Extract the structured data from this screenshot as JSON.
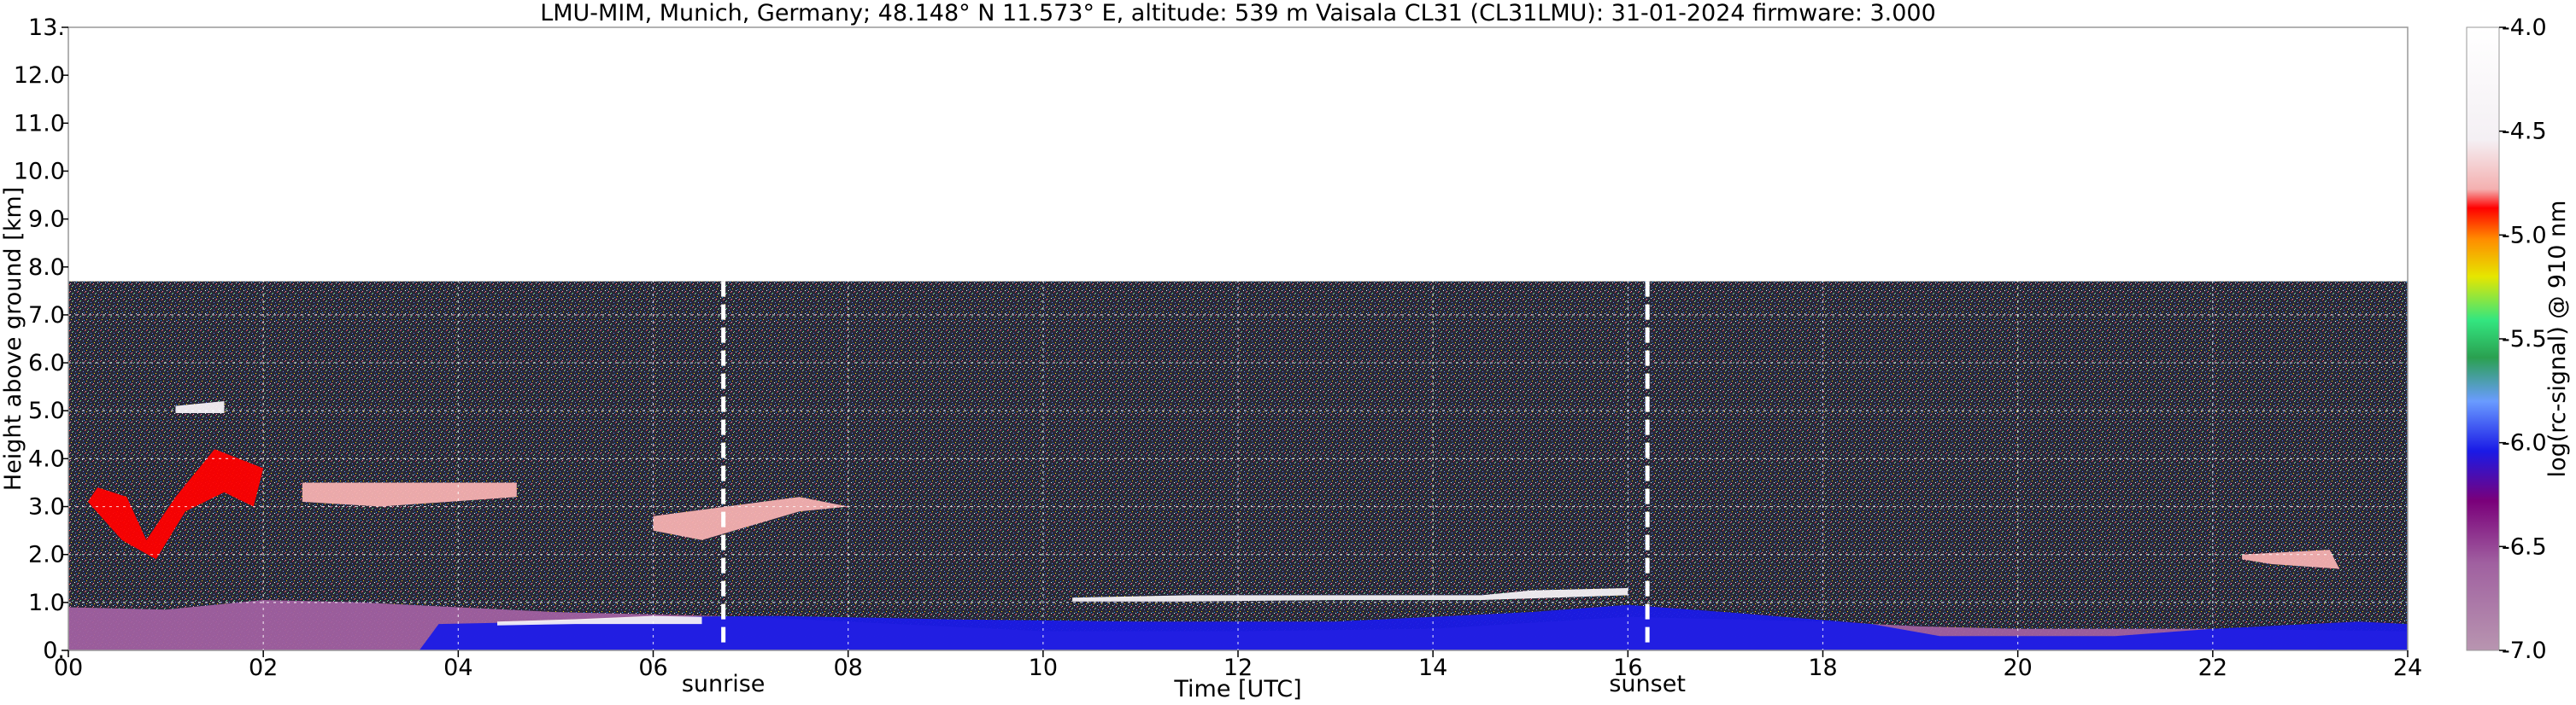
{
  "chart_data": {
    "type": "heatmap",
    "title": "LMU-MIM, Munich, Germany; 48.148° N 11.573° E, altitude: 539 m    Vaisala CL31 (CL31LMU): 31-01-2024    firmware: 3.000",
    "xlabel": "Time [UTC]",
    "ylabel": "Height above ground [km]",
    "xlim": [
      0,
      24
    ],
    "ylim": [
      0,
      13
    ],
    "x_ticks": [
      "00",
      "02",
      "04",
      "06",
      "08",
      "10",
      "12",
      "14",
      "16",
      "18",
      "20",
      "22",
      "24"
    ],
    "y_ticks": [
      "0.",
      "1.0",
      "2.0",
      "3.0",
      "4.0",
      "5.0",
      "6.0",
      "7.0",
      "8.0",
      "9.0",
      "10.0",
      "11.0",
      "12.0",
      "13."
    ],
    "grid": true,
    "measurement_top_km": 7.7,
    "annotations": [
      {
        "label": "sunrise",
        "x": 6.72
      },
      {
        "label": "sunset",
        "x": 16.2
      }
    ],
    "colorbar": {
      "label": "log(rc-signal) @ 910 nm",
      "range": [
        -7.0,
        -4.0
      ],
      "ticks": [
        "-4.0",
        "-4.5",
        "-5.0",
        "-5.5",
        "-6.0",
        "-6.5",
        "-7.0"
      ]
    },
    "layers": [
      {
        "name": "aerosol",
        "level": -6.6,
        "points": [
          [
            0,
            0
          ],
          [
            0,
            0.9
          ],
          [
            1,
            0.85
          ],
          [
            2,
            1.05
          ],
          [
            3,
            1.0
          ],
          [
            4,
            0.9
          ],
          [
            5,
            0.8
          ],
          [
            6,
            0.75
          ],
          [
            7,
            0.7
          ],
          [
            8,
            0.6
          ],
          [
            9,
            0.5
          ],
          [
            10,
            0.4
          ],
          [
            12,
            0.4
          ],
          [
            14,
            0.45
          ],
          [
            16,
            0.7
          ],
          [
            17,
            0.65
          ],
          [
            18,
            0.6
          ],
          [
            19,
            0.5
          ],
          [
            20,
            0.45
          ],
          [
            22,
            0.45
          ],
          [
            24,
            0.4
          ],
          [
            24,
            0
          ]
        ]
      },
      {
        "name": "boundary-layer",
        "level": -6.0,
        "points": [
          [
            3.6,
            0
          ],
          [
            3.8,
            0.55
          ],
          [
            5,
            0.6
          ],
          [
            6,
            0.7
          ],
          [
            7.3,
            0.72
          ],
          [
            9,
            0.65
          ],
          [
            11,
            0.6
          ],
          [
            13,
            0.6
          ],
          [
            15,
            0.8
          ],
          [
            16,
            0.95
          ],
          [
            17,
            0.8
          ],
          [
            18.5,
            0.55
          ],
          [
            19.2,
            0.3
          ],
          [
            21,
            0.3
          ],
          [
            22,
            0.45
          ],
          [
            23.5,
            0.6
          ],
          [
            24,
            0.55
          ],
          [
            24,
            0
          ]
        ]
      },
      {
        "name": "cloud-low-cap",
        "level": -4.3,
        "points": [
          [
            10.3,
            1.1
          ],
          [
            11.5,
            1.15
          ],
          [
            13,
            1.15
          ],
          [
            14.5,
            1.15
          ],
          [
            15,
            1.25
          ],
          [
            16,
            1.3
          ],
          [
            16,
            1.15
          ],
          [
            14.5,
            1.05
          ],
          [
            13,
            1.05
          ],
          [
            11.5,
            1.02
          ],
          [
            10.3,
            1.02
          ]
        ]
      },
      {
        "name": "cloud-stratus-morning",
        "level": -4.4,
        "points": [
          [
            4.4,
            0.6
          ],
          [
            5.2,
            0.65
          ],
          [
            6.0,
            0.72
          ],
          [
            6.5,
            0.7
          ],
          [
            6.5,
            0.55
          ],
          [
            5.2,
            0.55
          ],
          [
            4.4,
            0.52
          ]
        ]
      },
      {
        "name": "cloud-altocumulus-night",
        "level": -4.8,
        "points": [
          [
            0.3,
            3.4
          ],
          [
            0.6,
            3.2
          ],
          [
            0.8,
            2.3
          ],
          [
            1.1,
            3.2
          ],
          [
            1.5,
            4.2
          ],
          [
            2.0,
            3.8
          ],
          [
            1.9,
            3.0
          ],
          [
            1.6,
            3.3
          ],
          [
            1.2,
            2.9
          ],
          [
            0.9,
            1.9
          ],
          [
            0.55,
            2.3
          ],
          [
            0.2,
            3.1
          ]
        ]
      },
      {
        "name": "cloud-upper-night",
        "level": -4.5,
        "points": [
          [
            1.1,
            5.1
          ],
          [
            1.6,
            5.2
          ],
          [
            1.6,
            4.95
          ],
          [
            1.1,
            4.95
          ]
        ]
      },
      {
        "name": "cloud-band-0300",
        "level": -4.6,
        "points": [
          [
            2.4,
            3.5
          ],
          [
            4.6,
            3.5
          ],
          [
            4.6,
            3.2
          ],
          [
            3.2,
            3.0
          ],
          [
            2.4,
            3.1
          ]
        ]
      },
      {
        "name": "cloud-sunrise",
        "level": -4.6,
        "points": [
          [
            6.0,
            2.8
          ],
          [
            7.5,
            3.2
          ],
          [
            8.0,
            3.0
          ],
          [
            7.5,
            2.9
          ],
          [
            6.5,
            2.3
          ],
          [
            6.0,
            2.5
          ]
        ]
      },
      {
        "name": "cloud-evening",
        "level": -4.6,
        "points": [
          [
            22.3,
            2.0
          ],
          [
            23.2,
            2.1
          ],
          [
            23.3,
            1.7
          ],
          [
            22.6,
            1.8
          ],
          [
            22.3,
            1.9
          ]
        ]
      }
    ]
  }
}
